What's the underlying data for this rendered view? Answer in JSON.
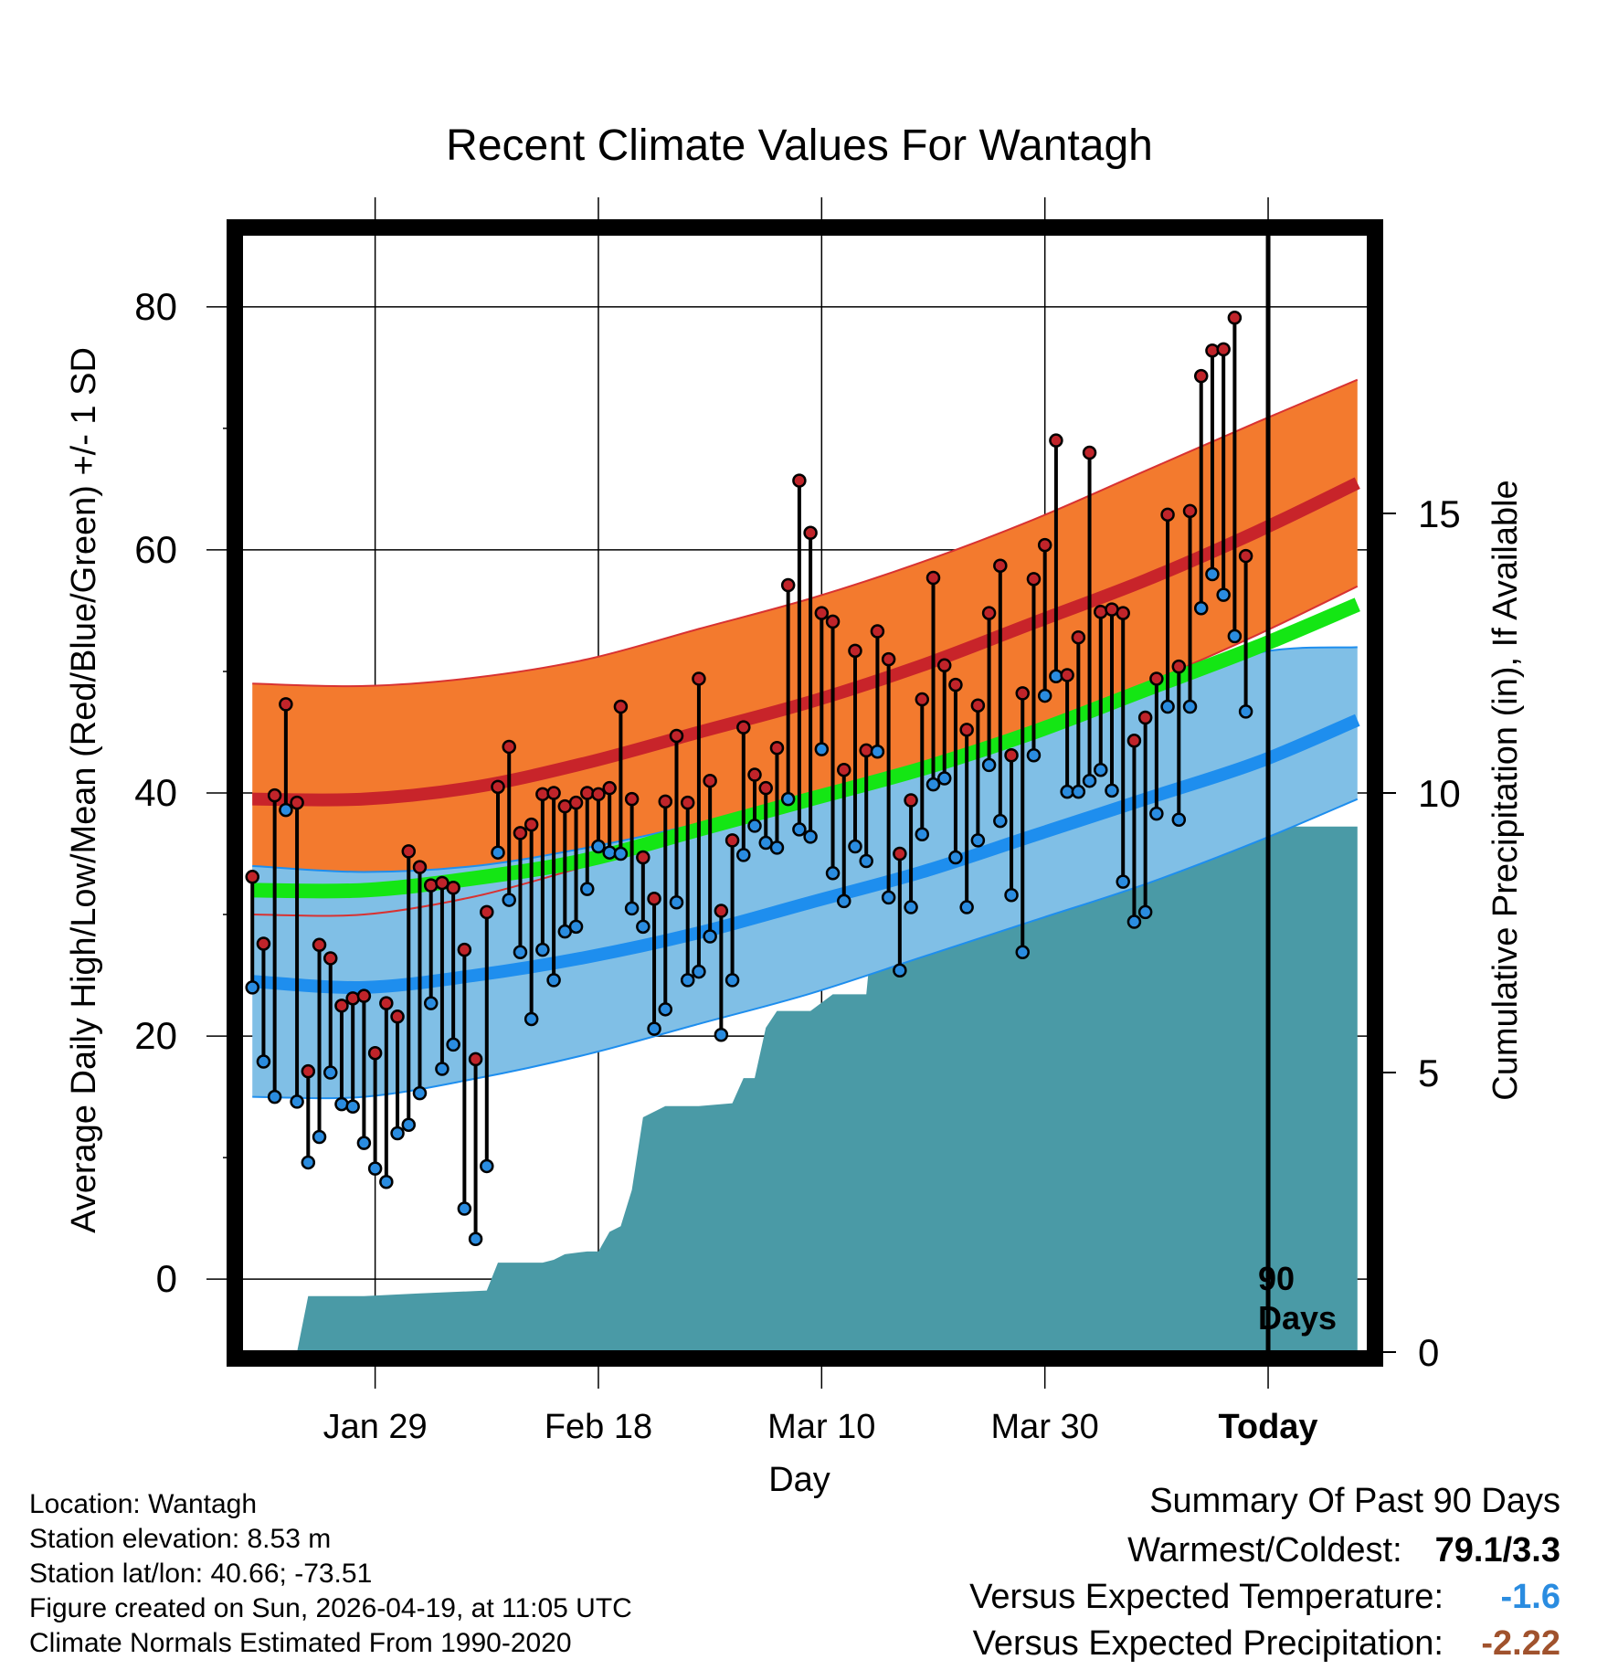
{
  "chart_data": {
    "type": "line",
    "title": "Recent Climate Values For Wantagh",
    "xlabel": "Day",
    "ylabel": "Average Daily High/Low/Mean (Red/Blue/Green) +/- 1 SD",
    "y2label": "Cumulative Precipitation (in), If Available",
    "ylim": [
      -6,
      86
    ],
    "y2lim": [
      0,
      20
    ],
    "yticks": [
      "0",
      "20",
      "40",
      "60",
      "80"
    ],
    "y2ticks": [
      "0",
      "5",
      "10",
      "15"
    ],
    "xlim": [
      -1,
      100
    ],
    "xticks": [
      {
        "label": "Jan 29",
        "day": 11
      },
      {
        "label": "Feb 18",
        "day": 31
      },
      {
        "label": "Mar 10",
        "day": 51
      },
      {
        "label": "Mar 30",
        "day": 71
      },
      {
        "label": "Today",
        "day": 91
      }
    ],
    "today_day": 91,
    "period_label": [
      "90",
      "Days"
    ],
    "grid": true,
    "normals": {
      "day": [
        0,
        10,
        20,
        30,
        40,
        50,
        60,
        70,
        80,
        90,
        99
      ],
      "high_mean": [
        39.5,
        39.5,
        40.5,
        42.5,
        45.0,
        47.5,
        50.5,
        54.0,
        57.5,
        61.5,
        65.5
      ],
      "high_upper": [
        49.0,
        48.8,
        49.5,
        51.0,
        53.5,
        56.0,
        59.0,
        62.5,
        66.5,
        70.5,
        74.0
      ],
      "high_lower": [
        30.0,
        30.0,
        31.5,
        34.0,
        36.5,
        39.0,
        42.0,
        45.5,
        49.0,
        53.0,
        57.0
      ],
      "low_mean": [
        24.5,
        24.0,
        25.0,
        26.5,
        28.5,
        31.0,
        33.5,
        36.5,
        39.5,
        42.5,
        46.0
      ],
      "low_upper": [
        34.0,
        33.5,
        34.0,
        35.5,
        37.5,
        40.0,
        42.5,
        45.0,
        48.0,
        51.5,
        52.0
      ],
      "low_lower": [
        15.0,
        15.0,
        16.5,
        18.5,
        21.0,
        23.5,
        26.5,
        29.5,
        32.5,
        36.0,
        39.5
      ],
      "avg_mean": [
        32.0,
        32.0,
        33.0,
        34.5,
        37.0,
        39.5,
        42.0,
        45.0,
        48.5,
        52.0,
        55.5
      ]
    },
    "highs": [
      33.1,
      27.6,
      39.8,
      47.3,
      39.2,
      17.1,
      27.5,
      26.4,
      22.5,
      23.1,
      23.3,
      18.6,
      22.7,
      21.6,
      35.2,
      33.9,
      32.4,
      32.6,
      32.2,
      27.1,
      18.1,
      30.2,
      40.5,
      43.8,
      36.7,
      37.4,
      39.9,
      40.0,
      38.9,
      39.2,
      40.0,
      39.9,
      40.4,
      47.1,
      39.5,
      34.7,
      31.3,
      39.3,
      44.7,
      39.2,
      49.4,
      41.0,
      30.3,
      36.1,
      45.4,
      41.5,
      40.4,
      43.7,
      57.1,
      65.7,
      61.4,
      54.8,
      54.1,
      41.9,
      51.7,
      43.5,
      53.3,
      51.0,
      35.0,
      39.4,
      47.7,
      57.7,
      50.5,
      48.9,
      45.2,
      47.2,
      54.8,
      58.7,
      43.1,
      48.2,
      57.6,
      60.4,
      69.0,
      49.7,
      52.8,
      68.0,
      54.9,
      55.1,
      54.8,
      44.3,
      46.2,
      49.4,
      62.9,
      50.4,
      63.2,
      74.3,
      76.4,
      76.5,
      79.1,
      59.5
    ],
    "lows": [
      24.0,
      17.9,
      15.0,
      38.6,
      14.6,
      9.6,
      11.7,
      17.0,
      14.4,
      14.2,
      11.2,
      9.1,
      8.0,
      12.0,
      12.7,
      15.3,
      22.7,
      17.3,
      19.3,
      5.8,
      3.3,
      9.3,
      35.1,
      31.2,
      26.9,
      21.4,
      27.1,
      24.6,
      28.6,
      29.0,
      32.1,
      35.6,
      35.1,
      35.0,
      30.5,
      29.0,
      20.6,
      22.2,
      31.0,
      24.6,
      25.3,
      28.2,
      20.1,
      24.6,
      34.9,
      37.3,
      35.9,
      35.5,
      39.5,
      37.0,
      36.4,
      43.6,
      33.4,
      31.1,
      35.6,
      34.4,
      43.4,
      31.4,
      25.4,
      30.6,
      36.6,
      40.7,
      41.2,
      34.7,
      30.6,
      36.1,
      42.3,
      37.7,
      31.6,
      26.9,
      43.1,
      48.0,
      49.6,
      40.1,
      40.1,
      41.0,
      41.9,
      40.2,
      32.7,
      29.4,
      30.2,
      38.3,
      47.1,
      37.8,
      47.1,
      55.2,
      58.0,
      56.3,
      52.9,
      46.7
    ],
    "precip_cumulative": {
      "day": [
        0,
        4,
        5,
        6,
        10,
        15,
        21,
        22,
        26,
        27,
        28,
        30,
        31,
        32,
        33,
        34,
        35,
        36,
        37,
        38,
        40,
        43,
        44,
        45,
        46,
        47,
        50,
        52,
        55,
        56,
        60,
        62,
        63,
        70,
        72,
        74,
        76,
        79,
        99
      ],
      "value": [
        0,
        0,
        1.0,
        1.0,
        1.0,
        1.05,
        1.1,
        1.6,
        1.6,
        1.65,
        1.75,
        1.8,
        1.8,
        2.15,
        2.25,
        2.9,
        4.2,
        4.3,
        4.4,
        4.4,
        4.4,
        4.45,
        4.9,
        4.9,
        5.8,
        6.1,
        6.1,
        6.4,
        6.4,
        8.45,
        8.45,
        8.75,
        8.75,
        8.75,
        8.95,
        9.05,
        9.4,
        9.4,
        9.4
      ]
    },
    "series_colors": {
      "high_band": "#f37a2e",
      "high_line": "#c8242a",
      "high_edge": "#d83232",
      "low_band": "#80bfe6",
      "low_line": "#1e8eee",
      "mean_line": "#14e614",
      "precip": "#4a9aa6",
      "high_dot": "#c0242a",
      "low_dot": "#2a8ce0"
    }
  },
  "info": {
    "location": "Location: Wantagh",
    "elevation": "Station elevation: 8.53 m",
    "latlon": "Station lat/lon: 40.66; -73.51",
    "created": "Figure created on Sun, 2026-04-19, at 11:05 UTC",
    "normals": "Climate Normals Estimated From 1990-2020"
  },
  "summary": {
    "heading": "Summary Of Past 90 Days",
    "warm_cold_label": "Warmest/Coldest:",
    "warm_cold_value": "79.1/3.3",
    "temp_label": "Versus Expected Temperature:",
    "temp_value": "-1.6",
    "temp_color": "#2a8ce0",
    "precip_label": "Versus Expected Precipitation:",
    "precip_value": "-2.22",
    "precip_color": "#a0522d"
  }
}
